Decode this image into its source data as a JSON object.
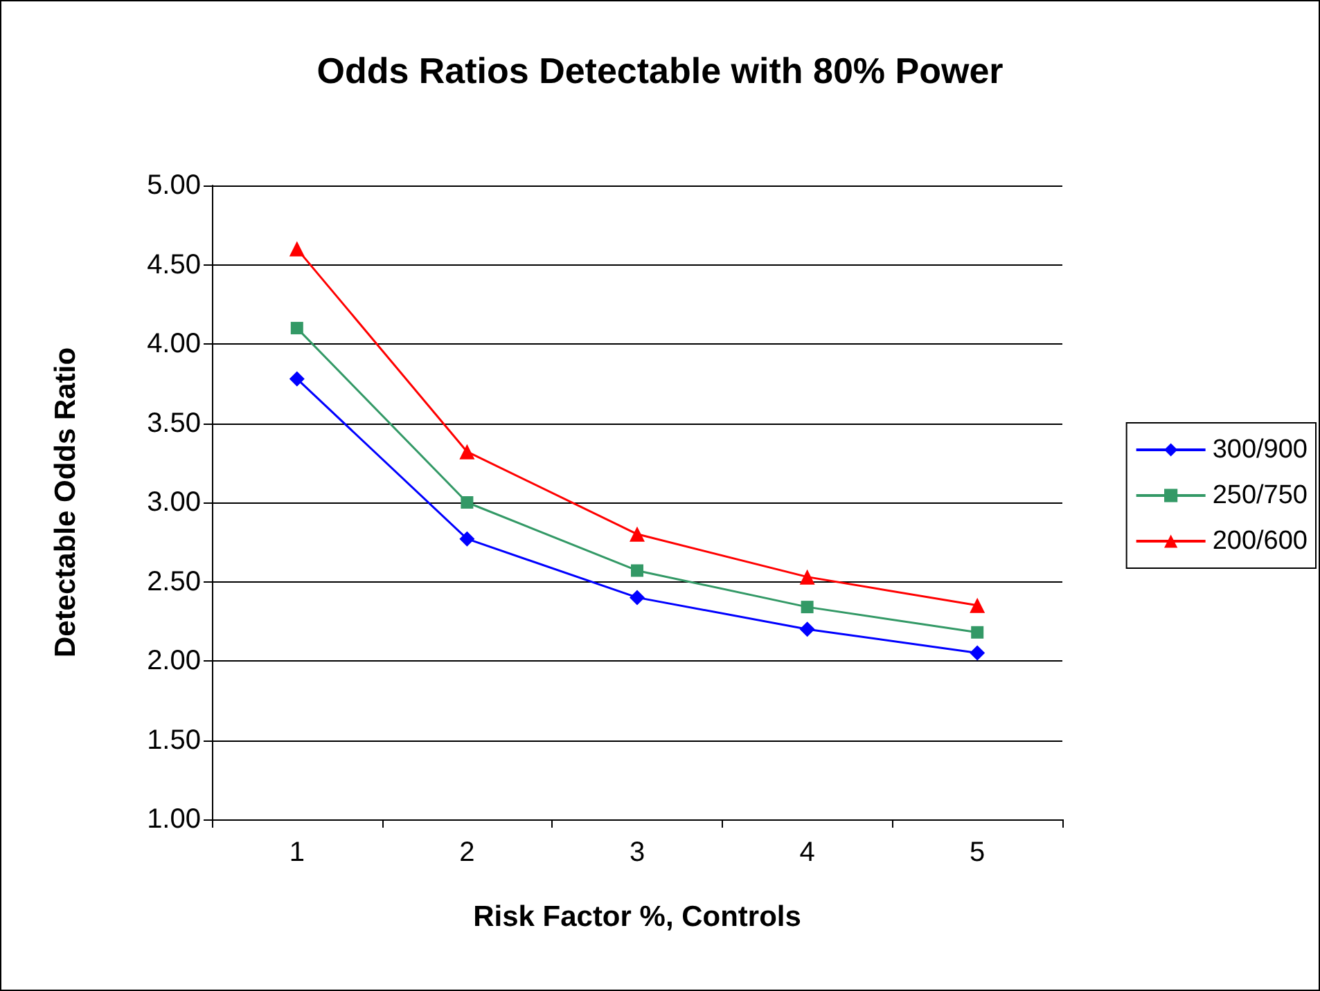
{
  "chart_data": {
    "type": "line",
    "title": "Odds Ratios Detectable with 80% Power",
    "xlabel": "Risk Factor %, Controls",
    "ylabel": "Detectable Odds Ratio",
    "categories": [
      "1",
      "2",
      "3",
      "4",
      "5"
    ],
    "series": [
      {
        "name": "300/900",
        "color": "#0000ff",
        "marker": "diamond",
        "values": [
          3.78,
          2.77,
          2.4,
          2.2,
          2.05
        ]
      },
      {
        "name": "250/750",
        "color": "#339966",
        "marker": "square",
        "values": [
          4.1,
          3.0,
          2.57,
          2.34,
          2.18
        ]
      },
      {
        "name": "200/600",
        "color": "#ff0000",
        "marker": "triangle",
        "values": [
          4.6,
          3.32,
          2.8,
          2.53,
          2.35
        ]
      }
    ],
    "ylim": [
      1,
      5
    ],
    "yticks": [
      {
        "value": 1,
        "label": "1.00"
      },
      {
        "value": 1.5,
        "label": "1.50"
      },
      {
        "value": 2,
        "label": "2.00"
      },
      {
        "value": 2.5,
        "label": "2.50"
      },
      {
        "value": 3,
        "label": "3.00"
      },
      {
        "value": 3.5,
        "label": "3.50"
      },
      {
        "value": 4,
        "label": "4.00"
      },
      {
        "value": 4.5,
        "label": "4.50"
      },
      {
        "value": 5,
        "label": "5.00"
      }
    ],
    "grid": "y",
    "legend": "right",
    "line_style": "solid"
  }
}
